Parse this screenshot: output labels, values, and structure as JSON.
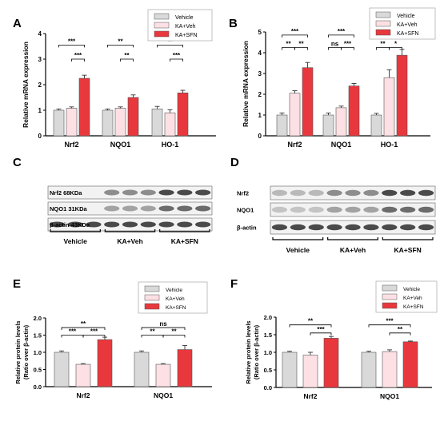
{
  "colors": {
    "vehicle": "#d9d9d9",
    "kaveh": "#fde0e4",
    "kasfn": "#e8383d"
  },
  "legend_items": [
    "Vehicle",
    "KA+Veh",
    "KA+SFN"
  ],
  "chart_data": [
    {
      "panel": "A",
      "type": "bar",
      "ylabel": "Relative mRNA expression",
      "categories": [
        "Nrf2",
        "NQO1",
        "HO-1"
      ],
      "ylim": [
        0,
        4
      ],
      "yticks": [
        0,
        1,
        2,
        3,
        4
      ],
      "series": [
        {
          "name": "Vehicle",
          "values": [
            1.0,
            1.0,
            1.05
          ],
          "errors": [
            0.05,
            0.05,
            0.1
          ]
        },
        {
          "name": "KA+Veh",
          "values": [
            1.08,
            1.08,
            0.9
          ],
          "errors": [
            0.05,
            0.05,
            0.12
          ]
        },
        {
          "name": "KA+SFN",
          "values": [
            2.25,
            1.5,
            1.68
          ],
          "errors": [
            0.12,
            0.1,
            0.1
          ]
        }
      ],
      "significance": [
        {
          "cat": 0,
          "from": 0,
          "to": 2,
          "label": "***",
          "y": 3.55
        },
        {
          "cat": 0,
          "from": 1,
          "to": 2,
          "label": "***",
          "y": 3.0
        },
        {
          "cat": 1,
          "from": 0,
          "to": 2,
          "label": "**",
          "y": 3.55
        },
        {
          "cat": 1,
          "from": 1,
          "to": 2,
          "label": "**",
          "y": 3.0
        },
        {
          "cat": 2,
          "from": 0,
          "to": 2,
          "label": "**",
          "y": 3.55
        },
        {
          "cat": 2,
          "from": 1,
          "to": 2,
          "label": "***",
          "y": 3.0
        }
      ]
    },
    {
      "panel": "B",
      "type": "bar",
      "ylabel": "Relative mRNA expression",
      "categories": [
        "Nrf2",
        "NQO1",
        "HO-1"
      ],
      "ylim": [
        0,
        5
      ],
      "yticks": [
        0,
        1,
        2,
        3,
        4,
        5
      ],
      "series": [
        {
          "name": "Vehicle",
          "values": [
            1.0,
            1.0,
            1.0
          ],
          "errors": [
            0.1,
            0.1,
            0.08
          ]
        },
        {
          "name": "KA+Veh",
          "values": [
            2.05,
            1.35,
            2.8
          ],
          "errors": [
            0.12,
            0.08,
            0.38
          ]
        },
        {
          "name": "KA+SFN",
          "values": [
            3.28,
            2.4,
            3.88
          ],
          "errors": [
            0.25,
            0.12,
            0.28
          ]
        }
      ],
      "significance": [
        {
          "cat": 0,
          "from": 0,
          "to": 2,
          "label": "***",
          "y": 4.85
        },
        {
          "cat": 0,
          "from": 0,
          "to": 1,
          "label": "**",
          "y": 4.25
        },
        {
          "cat": 0,
          "from": 1,
          "to": 2,
          "label": "**",
          "y": 4.25
        },
        {
          "cat": 1,
          "from": 0,
          "to": 2,
          "label": "***",
          "y": 4.85
        },
        {
          "cat": 1,
          "from": 0,
          "to": 1,
          "label": "ns",
          "y": 4.25
        },
        {
          "cat": 1,
          "from": 1,
          "to": 2,
          "label": "***",
          "y": 4.25
        },
        {
          "cat": 2,
          "from": 0,
          "to": 2,
          "label": "***",
          "y": 4.85
        },
        {
          "cat": 2,
          "from": 0,
          "to": 1,
          "label": "**",
          "y": 4.25
        },
        {
          "cat": 2,
          "from": 1,
          "to": 2,
          "label": "*",
          "y": 4.25
        }
      ]
    },
    {
      "panel": "E",
      "type": "bar",
      "ylabel": "Relative protein levels",
      "ylabel2": "(Ratio over β-actin)",
      "categories": [
        "Nrf2",
        "NQO1"
      ],
      "ylim": [
        0,
        2.0
      ],
      "yticks": [
        "0.0",
        "0.5",
        "1.0",
        "1.5",
        "2.0"
      ],
      "series": [
        {
          "name": "Vehicle",
          "values": [
            1.0,
            1.0
          ],
          "errors": [
            0.04,
            0.04
          ]
        },
        {
          "name": "KA+Veh",
          "values": [
            0.65,
            0.65
          ],
          "errors": [
            0.02,
            0.02
          ]
        },
        {
          "name": "KA+SFN",
          "values": [
            1.37,
            1.08
          ],
          "errors": [
            0.07,
            0.12
          ]
        }
      ],
      "significance": [
        {
          "cat": 0,
          "from": 0,
          "to": 2,
          "label": "**",
          "y": 1.72
        },
        {
          "cat": 0,
          "from": 0,
          "to": 1,
          "label": "***",
          "y": 1.5
        },
        {
          "cat": 0,
          "from": 1,
          "to": 2,
          "label": "***",
          "y": 1.5
        },
        {
          "cat": 1,
          "from": 0,
          "to": 2,
          "label": "ns",
          "y": 1.72
        },
        {
          "cat": 1,
          "from": 0,
          "to": 1,
          "label": "**",
          "y": 1.5
        },
        {
          "cat": 1,
          "from": 1,
          "to": 2,
          "label": "**",
          "y": 1.5
        }
      ]
    },
    {
      "panel": "F",
      "type": "bar",
      "ylabel": "Relative protein levels",
      "ylabel2": "(Ratio over β-actin)",
      "categories": [
        "Nrf2",
        "NQO1"
      ],
      "ylim": [
        0,
        2.0
      ],
      "yticks": [
        "0.0",
        "0.5",
        "1.0",
        "1.5",
        "2.0"
      ],
      "series": [
        {
          "name": "Vehicle",
          "values": [
            1.0,
            1.0
          ],
          "errors": [
            0.03,
            0.03
          ]
        },
        {
          "name": "KA+Veh",
          "values": [
            0.92,
            1.02
          ],
          "errors": [
            0.08,
            0.05
          ]
        },
        {
          "name": "KA+SFN",
          "values": [
            1.4,
            1.3
          ],
          "errors": [
            0.05,
            0.02
          ]
        }
      ],
      "significance": [
        {
          "cat": 0,
          "from": 0,
          "to": 2,
          "label": "**",
          "y": 1.78
        },
        {
          "cat": 0,
          "from": 1,
          "to": 2,
          "label": "***",
          "y": 1.55
        },
        {
          "cat": 1,
          "from": 0,
          "to": 2,
          "label": "***",
          "y": 1.78
        },
        {
          "cat": 1,
          "from": 1,
          "to": 2,
          "label": "**",
          "y": 1.55
        }
      ]
    }
  ],
  "blots": [
    {
      "panel": "C",
      "rows": [
        "Nrf2 68KDa",
        "NQO1 31KDa",
        "β-actin 43KDa"
      ],
      "groups": [
        "Vehicle",
        "KA+Veh",
        "KA+SFN"
      ]
    },
    {
      "panel": "D",
      "rows": [
        "Nrf2",
        "NQO1",
        "β-actin"
      ],
      "groups": [
        "Vehicle",
        "KA+Veh",
        "KA+SFN"
      ]
    }
  ]
}
